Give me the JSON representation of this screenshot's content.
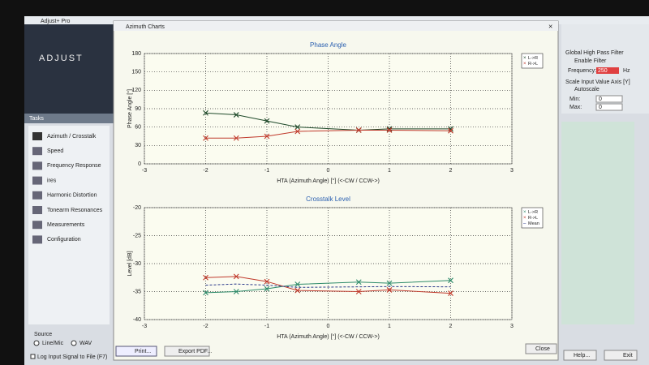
{
  "app": {
    "title": "Adjust+ Pro",
    "logo": "ADJUST",
    "tasks_header": "Tasks",
    "tasks": [
      "Azimuth / Crosstalk",
      "Speed",
      "Frequency Response",
      "ires",
      "Harmonic Distortion",
      "Tonearm Resonances",
      "Measurements",
      "Configuration"
    ],
    "source_label": "Source",
    "source_options": [
      "Line/Mic",
      "WAV"
    ],
    "log_option": "Log Input Signal to File (F7)",
    "filter_title": "Global High Pass Filter",
    "enable_filter": "Enable Filter",
    "frequency_label": "Frequency:",
    "frequency_value": "250",
    "frequency_unit": "Hz",
    "scale_title": "Scale Input Value Axis [Y]",
    "autoscale": "Autoscale",
    "min_label": "Min:",
    "min_value": "0",
    "max_label": "Max:",
    "max_value": "0",
    "help": "Help...",
    "exit": "Exit"
  },
  "dialog": {
    "title": "Azimuth Charts",
    "print": "Print...",
    "export": "Export PDF...",
    "close": "Close"
  },
  "chart_data": [
    {
      "type": "line",
      "title": "Phase Angle",
      "x_label": "HTA (Azimuth Angle) [°] (<-CW / CCW->)",
      "y_label": "Phase Angle [°]",
      "x": [
        -2,
        -1.5,
        -1,
        -0.5,
        0.5,
        1,
        2
      ],
      "series": [
        {
          "name": "L->R",
          "color": "#1f4a2a",
          "values": [
            83,
            80,
            70,
            60,
            55,
            57,
            57
          ]
        },
        {
          "name": "R->L",
          "color": "#c0392b",
          "values": [
            42,
            42,
            45,
            53,
            55,
            55,
            54
          ]
        }
      ],
      "xlim": [
        -3,
        3
      ],
      "xticks": [
        -3,
        -2,
        -1,
        0,
        1,
        2,
        3
      ],
      "ylim": [
        0,
        180
      ],
      "yticks": [
        0,
        30,
        60,
        90,
        120,
        150,
        180
      ],
      "grid": true,
      "legend": "right"
    },
    {
      "type": "line",
      "title": "Crosstalk Level",
      "x_label": "HTA (Azimuth Angle) [°] (<-CW / CCW->)",
      "y_label": "Level [dB]",
      "x": [
        -2,
        -1.5,
        -1,
        -0.5,
        0.5,
        1,
        2
      ],
      "series": [
        {
          "name": "L->R",
          "color": "#2e8b6a",
          "values": [
            -35.2,
            -35,
            -34.5,
            -33.7,
            -33.3,
            -33.5,
            -33
          ]
        },
        {
          "name": "R->L",
          "color": "#c0392b",
          "values": [
            -32.5,
            -32.3,
            -33.2,
            -34.8,
            -35,
            -34.7,
            -35.3
          ]
        },
        {
          "name": "Mean",
          "color": "#2b3a8a",
          "style": "dashed",
          "values": [
            -33.85,
            -33.65,
            -33.85,
            -34.25,
            -34.15,
            -34.1,
            -34.15
          ]
        }
      ],
      "xlim": [
        -3,
        3
      ],
      "xticks": [
        -3,
        -2,
        -1,
        0,
        1,
        2,
        3
      ],
      "ylim": [
        -40,
        -20
      ],
      "yticks": [
        -40,
        -35,
        -30,
        -25,
        -20
      ],
      "grid": true,
      "legend": "right"
    }
  ]
}
